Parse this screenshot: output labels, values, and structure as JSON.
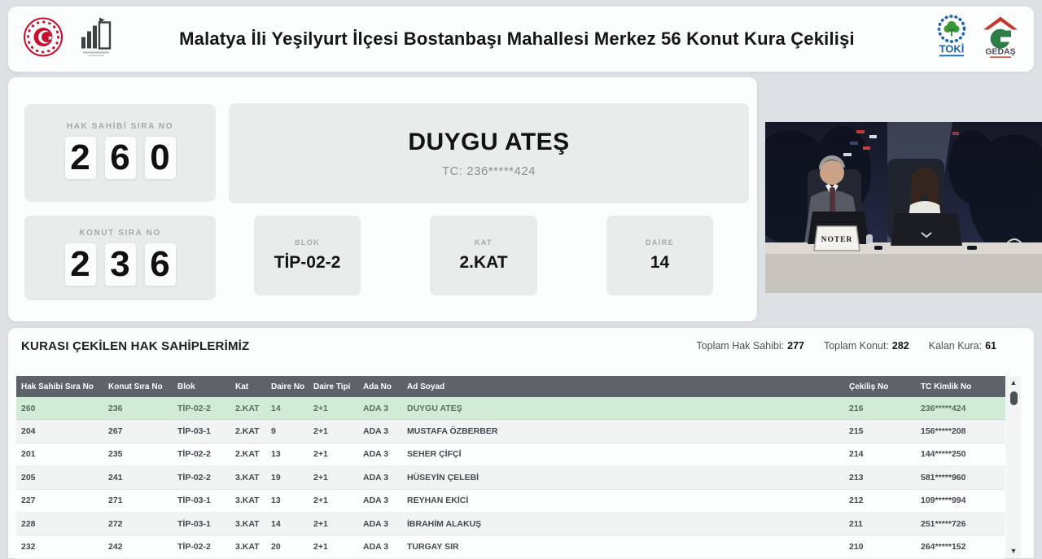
{
  "header": {
    "title": "Malatya İli Yeşilyurt İlçesi Bostanbaşı Mahallesi Merkez 56 Konut Kura Çekilişi",
    "toki_label": "TOKİ",
    "gedas_label": "GEDAŞ"
  },
  "draw": {
    "hak_sahibi": {
      "label": "HAK SAHİBİ SIRA NO",
      "value": "260",
      "digits": [
        "2",
        "6",
        "0"
      ]
    },
    "konut": {
      "label": "KONUT SIRA NO",
      "value": "236",
      "digits": [
        "2",
        "3",
        "6"
      ]
    },
    "winner": {
      "name": "DUYGU ATEŞ",
      "tc": "TC: 236*****424"
    },
    "blok": {
      "label": "BLOK",
      "value": "TİP-02-2"
    },
    "kat": {
      "label": "KAT",
      "value": "2.KAT"
    },
    "daire": {
      "label": "DAİRE",
      "value": "14"
    }
  },
  "video": {
    "placard": "NOTER"
  },
  "results": {
    "title": "KURASI ÇEKİLEN HAK SAHİPLERİMİZ",
    "stats": [
      {
        "label": "Toplam Hak Sahibi:",
        "value": "277"
      },
      {
        "label": "Toplam Konut:",
        "value": "282"
      },
      {
        "label": "Kalan Kura:",
        "value": "61"
      }
    ],
    "columns": [
      "Hak Sahibi Sıra No",
      "Konut Sıra No",
      "Blok",
      "Kat",
      "Daire No",
      "Daire Tipi",
      "Ada No",
      "Ad Soyad",
      "Çekiliş No",
      "TC Kimlik No"
    ],
    "rows": [
      {
        "highlight": true,
        "cells": [
          "260",
          "236",
          "TİP-02-2",
          "2.KAT",
          "14",
          "2+1",
          "ADA 3",
          "DUYGU ATEŞ",
          "216",
          "236*****424"
        ]
      },
      {
        "highlight": false,
        "cells": [
          "204",
          "267",
          "TİP-03-1",
          "2.KAT",
          "9",
          "2+1",
          "ADA 3",
          "MUSTAFA ÖZBERBER",
          "215",
          "156*****208"
        ]
      },
      {
        "highlight": false,
        "cells": [
          "201",
          "235",
          "TİP-02-2",
          "2.KAT",
          "13",
          "2+1",
          "ADA 3",
          "SEHER ÇİFÇİ",
          "214",
          "144*****250"
        ]
      },
      {
        "highlight": false,
        "cells": [
          "205",
          "241",
          "TİP-02-2",
          "3.KAT",
          "19",
          "2+1",
          "ADA 3",
          "HÜSEYİN ÇELEBİ",
          "213",
          "581*****960"
        ]
      },
      {
        "highlight": false,
        "cells": [
          "227",
          "271",
          "TİP-03-1",
          "3.KAT",
          "13",
          "2+1",
          "ADA 3",
          "REYHAN EKİCİ",
          "212",
          "109*****994"
        ]
      },
      {
        "highlight": false,
        "cells": [
          "228",
          "272",
          "TİP-03-1",
          "3.KAT",
          "14",
          "2+1",
          "ADA 3",
          "İBRAHİM ALAKUŞ",
          "211",
          "251*****726"
        ]
      },
      {
        "highlight": false,
        "cells": [
          "232",
          "242",
          "TİP-02-2",
          "3.KAT",
          "20",
          "2+1",
          "ADA 3",
          "TURGAY SIR",
          "210",
          "264*****152"
        ]
      }
    ]
  },
  "colors": {
    "highlight_green": "#d2ebd7",
    "table_header_bg": "#5d6469",
    "toki_blue": "#1f63a8",
    "toki_green": "#3a9a3a",
    "gedas_red": "#c0392b",
    "gedas_green": "#2e7d46",
    "emblem_red": "#c8102e",
    "page_bg": "#dde1e4"
  }
}
